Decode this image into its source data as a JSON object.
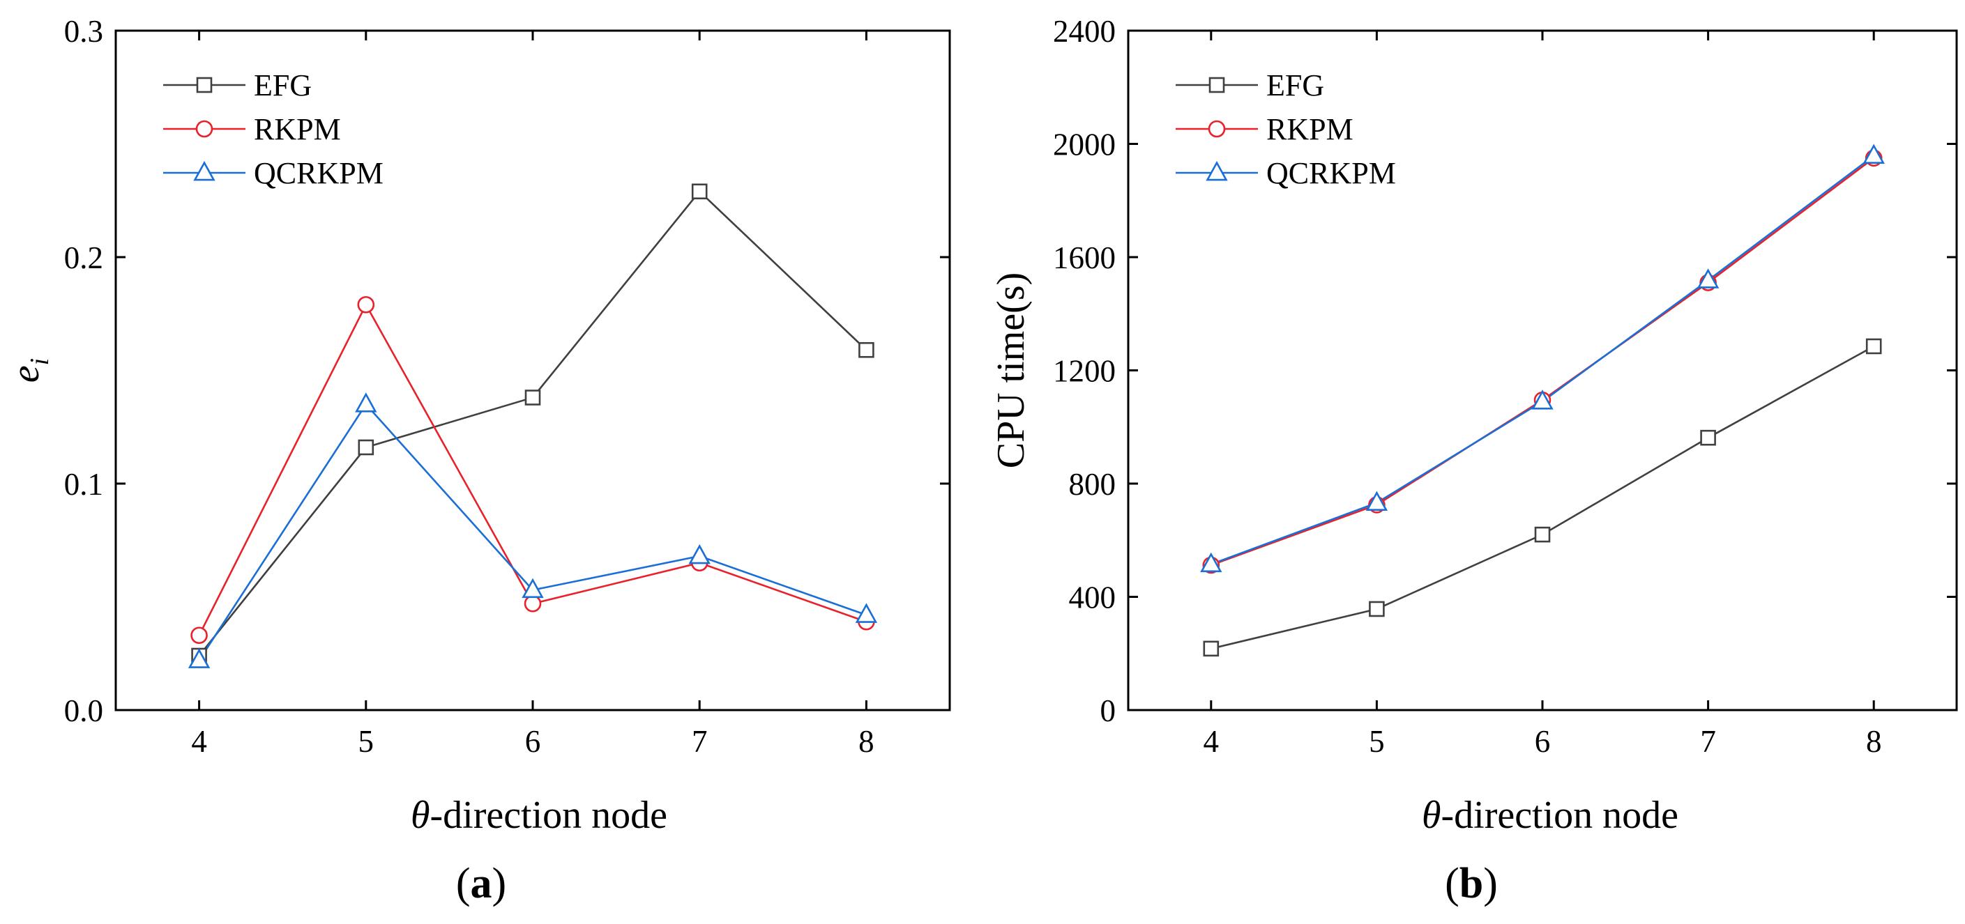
{
  "chart_data": [
    {
      "panel": "a",
      "panel_label": "a",
      "type": "line",
      "xlabel_var": "θ",
      "xlabel_rest": "-direction node",
      "ylabel_main": "e",
      "ylabel_sub": "i",
      "xlim": [
        3.5,
        8.5
      ],
      "ylim": [
        0,
        0.3
      ],
      "x": [
        4,
        5,
        6,
        7,
        8
      ],
      "xticks": [
        "4",
        "5",
        "6",
        "7",
        "8"
      ],
      "yticks": [
        0.0,
        0.1,
        0.2,
        0.3
      ],
      "ytick_labels": [
        "0.0",
        "0.1",
        "0.2",
        "0.3"
      ],
      "legend_position": "top-left",
      "series": [
        {
          "name": "EFG",
          "color": "#404040",
          "marker": "square",
          "values": [
            0.024,
            0.116,
            0.138,
            0.229,
            0.159
          ]
        },
        {
          "name": "RKPM",
          "color": "#e8212b",
          "marker": "circle",
          "values": [
            0.033,
            0.179,
            0.047,
            0.065,
            0.039
          ]
        },
        {
          "name": "QCRKPM",
          "color": "#1a6fd6",
          "marker": "triangle",
          "values": [
            0.022,
            0.135,
            0.053,
            0.068,
            0.042
          ]
        }
      ]
    },
    {
      "panel": "b",
      "panel_label": "b",
      "type": "line",
      "xlabel_var": "θ",
      "xlabel_rest": "-direction node",
      "ylabel": "CPU time(s)",
      "xlim": [
        3.5,
        8.5
      ],
      "ylim": [
        0,
        2400
      ],
      "x": [
        4,
        5,
        6,
        7,
        8
      ],
      "xticks": [
        "4",
        "5",
        "6",
        "7",
        "8"
      ],
      "yticks": [
        0,
        400,
        800,
        1200,
        1600,
        2000,
        2400
      ],
      "ytick_labels": [
        "0",
        "400",
        "800",
        "1200",
        "1600",
        "2000",
        "2400"
      ],
      "legend_position": "top-left",
      "series": [
        {
          "name": "EFG",
          "color": "#404040",
          "marker": "square",
          "values": [
            217,
            357,
            620,
            962,
            1285
          ]
        },
        {
          "name": "RKPM",
          "color": "#e8212b",
          "marker": "circle",
          "values": [
            512,
            725,
            1095,
            1510,
            1950
          ]
        },
        {
          "name": "QCRKPM",
          "color": "#1a6fd6",
          "marker": "triangle",
          "values": [
            515,
            732,
            1090,
            1518,
            1958
          ]
        }
      ]
    }
  ]
}
